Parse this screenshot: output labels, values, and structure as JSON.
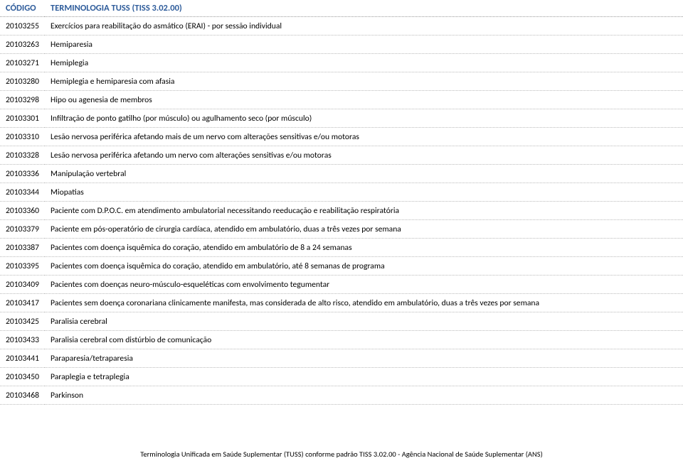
{
  "header": {
    "col1": "CÓDIGO",
    "col2": "TERMINOLOGIA TUSS (TISS 3.02.00)"
  },
  "rows": [
    {
      "code": "20103255",
      "desc": "Exercícios para reabilitação do asmático (ERAI) - por sessão individual"
    },
    {
      "code": "20103263",
      "desc": "Hemiparesia"
    },
    {
      "code": "20103271",
      "desc": "Hemiplegia"
    },
    {
      "code": "20103280",
      "desc": "Hemiplegia e hemiparesia com afasia"
    },
    {
      "code": "20103298",
      "desc": "Hipo ou agenesia de membros"
    },
    {
      "code": "20103301",
      "desc": "Infiltração de ponto gatilho (por músculo) ou agulhamento seco (por músculo)"
    },
    {
      "code": "20103310",
      "desc": "Lesão nervosa periférica afetando mais de um nervo com alterações sensitivas e/ou motoras"
    },
    {
      "code": "20103328",
      "desc": "Lesão nervosa periférica afetando um nervo com alterações sensitivas e/ou motoras"
    },
    {
      "code": "20103336",
      "desc": "Manipulação vertebral"
    },
    {
      "code": "20103344",
      "desc": "Miopatias"
    },
    {
      "code": "20103360",
      "desc": "Paciente com D.P.O.C. em atendimento ambulatorial necessitando reeducação e reabilitação respiratória"
    },
    {
      "code": "20103379",
      "desc": "Paciente em pós-operatório de cirurgia cardíaca, atendido em ambulatório, duas a três vezes por semana"
    },
    {
      "code": "20103387",
      "desc": "Pacientes com doença isquêmica do coração, atendido em ambulatório de 8 a 24 semanas"
    },
    {
      "code": "20103395",
      "desc": "Pacientes com doença isquêmica do coração, atendido em ambulatório, até 8 semanas de programa"
    },
    {
      "code": "20103409",
      "desc": "Pacientes com doenças neuro-músculo-esqueléticas com envolvimento tegumentar"
    },
    {
      "code": "20103417",
      "desc": "Pacientes sem doença coronariana clinicamente manifesta, mas considerada de alto  risco,  atendido  em ambulatório, duas a três vezes por semana"
    },
    {
      "code": "20103425",
      "desc": "Paralisia cerebral"
    },
    {
      "code": "20103433",
      "desc": "Paralisia cerebral com distúrbio de comunicação"
    },
    {
      "code": "20103441",
      "desc": "Paraparesia/tetraparesia"
    },
    {
      "code": "20103450",
      "desc": "Paraplegia e tetraplegia"
    },
    {
      "code": "20103468",
      "desc": "Parkinson"
    }
  ],
  "footer": "Terminologia Unificada em Saúde Suplementar (TUSS) conforme padrão TISS 3.02.00 - Agência Nacional de Saúde Suplementar (ANS)"
}
